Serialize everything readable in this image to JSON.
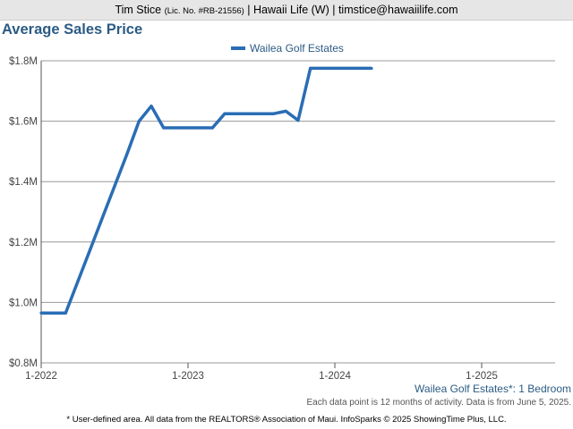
{
  "header": {
    "name": "Tim Stice",
    "license": "(Lic. No. #RB-21556)",
    "rest": "| Hawaii Life (W) | timstice@hawaiilife.com"
  },
  "chart_data": {
    "type": "line",
    "title": "Average Sales Price",
    "legend": "top-center",
    "grid": true,
    "xlim": [
      "2022-01",
      "2025-07"
    ],
    "ylim": [
      800000,
      1800000
    ],
    "y_ticks": [
      "$0.8M",
      "$1.0M",
      "$1.2M",
      "$1.4M",
      "$1.6M",
      "$1.8M"
    ],
    "x_ticks": [
      "1-2022",
      "1-2023",
      "1-2024",
      "1-2025"
    ],
    "color": "#2a6db5",
    "series": [
      {
        "name": "Wailea Golf Estates",
        "x": [
          "2022-01",
          "2022-02",
          "2022-03",
          "2022-04",
          "2022-05",
          "2022-06",
          "2022-07",
          "2022-08",
          "2022-09",
          "2022-10",
          "2022-11",
          "2022-12",
          "2023-01",
          "2023-02",
          "2023-03",
          "2023-04",
          "2023-05",
          "2023-06",
          "2023-07",
          "2023-08",
          "2023-09",
          "2023-10",
          "2023-11",
          "2023-12",
          "2024-01",
          "2024-02",
          "2024-03",
          "2024-04"
        ],
        "values": [
          965000,
          965000,
          965000,
          1070000,
          1175000,
          1280000,
          1385000,
          1490000,
          1600000,
          1650000,
          1578000,
          1578000,
          1578000,
          1578000,
          1578000,
          1625000,
          1625000,
          1625000,
          1625000,
          1625000,
          1633000,
          1603000,
          1775000,
          1775000,
          1775000,
          1775000,
          1775000,
          1775000
        ]
      }
    ]
  },
  "bedroom_label": "Wailea Golf Estates*: 1 Bedroom",
  "note": "Each data point is 12 months of activity. Data is from June 5, 2025.",
  "footer": "* User-defined area. All data from the REALTORS® Association of Maui. InfoSparks © 2025 ShowingTime Plus, LLC."
}
